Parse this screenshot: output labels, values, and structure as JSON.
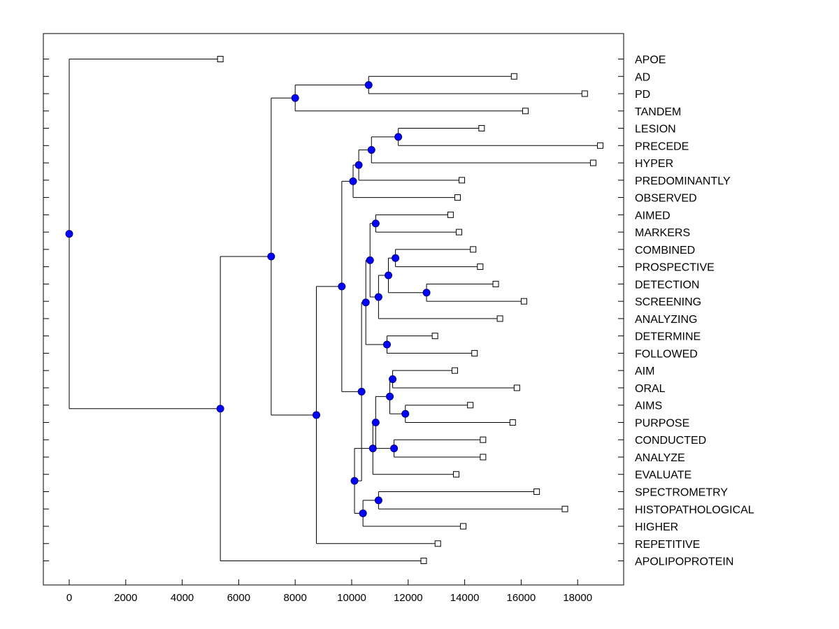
{
  "chart_data": {
    "type": "dendrogram",
    "title": "",
    "xlabel": "",
    "ylabel": "",
    "xlim": [
      -900,
      19500
    ],
    "xticks": [
      "0",
      "2000",
      "4000",
      "6000",
      "8000",
      "10000",
      "12000",
      "14000",
      "16000",
      "18000"
    ],
    "xtick_values": [
      0,
      2000,
      4000,
      6000,
      8000,
      10000,
      12000,
      14000,
      16000,
      18000
    ],
    "leaves": [
      {
        "name": "APOE",
        "x": 5350
      },
      {
        "name": "AD",
        "x": 15750
      },
      {
        "name": "PD",
        "x": 18250
      },
      {
        "name": "TANDEM",
        "x": 16150
      },
      {
        "name": "LESION",
        "x": 14600
      },
      {
        "name": "PRECEDE",
        "x": 18800
      },
      {
        "name": "HYPER",
        "x": 18550
      },
      {
        "name": "PREDOMINANTLY",
        "x": 13900
      },
      {
        "name": "OBSERVED",
        "x": 13750
      },
      {
        "name": "AIMED",
        "x": 13500
      },
      {
        "name": "MARKERS",
        "x": 13800
      },
      {
        "name": "COMBINED",
        "x": 14300
      },
      {
        "name": "PROSPECTIVE",
        "x": 14550
      },
      {
        "name": "DETECTION",
        "x": 15100
      },
      {
        "name": "SCREENING",
        "x": 16100
      },
      {
        "name": "ANALYZING",
        "x": 15250
      },
      {
        "name": "DETERMINE",
        "x": 12950
      },
      {
        "name": "FOLLOWED",
        "x": 14350
      },
      {
        "name": "AIM",
        "x": 13650
      },
      {
        "name": "ORAL",
        "x": 15850
      },
      {
        "name": "AIMS",
        "x": 14200
      },
      {
        "name": "PURPOSE",
        "x": 15700
      },
      {
        "name": "CONDUCTED",
        "x": 14650
      },
      {
        "name": "ANALYZE",
        "x": 14650
      },
      {
        "name": "EVALUATE",
        "x": 13700
      },
      {
        "name": "SPECTROMETRY",
        "x": 16550
      },
      {
        "name": "HISTOPATHOLOGICAL",
        "x": 17550
      },
      {
        "name": "HIGHER",
        "x": 13950
      },
      {
        "name": "REPETITIVE",
        "x": 13050
      },
      {
        "name": "APOLIPOPROTEIN",
        "x": 12550
      }
    ],
    "merges": [
      {
        "id": "m1",
        "x": 10600,
        "children": [
          "AD",
          "PD"
        ]
      },
      {
        "id": "m2",
        "x": 8000,
        "children": [
          "m1",
          "TANDEM"
        ]
      },
      {
        "id": "m3",
        "x": 11650,
        "children": [
          "LESION",
          "PRECEDE"
        ]
      },
      {
        "id": "m4",
        "x": 10700,
        "children": [
          "m3",
          "HYPER"
        ]
      },
      {
        "id": "m5",
        "x": 10250,
        "children": [
          "m4",
          "PREDOMINANTLY"
        ]
      },
      {
        "id": "m6",
        "x": 10050,
        "children": [
          "m5",
          "OBSERVED"
        ]
      },
      {
        "id": "m7",
        "x": 10850,
        "children": [
          "AIMED",
          "MARKERS"
        ]
      },
      {
        "id": "m8",
        "x": 11550,
        "children": [
          "COMBINED",
          "PROSPECTIVE"
        ]
      },
      {
        "id": "m9",
        "x": 12650,
        "children": [
          "DETECTION",
          "SCREENING"
        ]
      },
      {
        "id": "m10",
        "x": 11300,
        "children": [
          "m8",
          "m9"
        ]
      },
      {
        "id": "m11",
        "x": 10950,
        "children": [
          "m10",
          "ANALYZING"
        ]
      },
      {
        "id": "m12",
        "x": 10650,
        "children": [
          "m7",
          "m11"
        ]
      },
      {
        "id": "m13",
        "x": 11250,
        "children": [
          "DETERMINE",
          "FOLLOWED"
        ]
      },
      {
        "id": "m14",
        "x": 10500,
        "children": [
          "m12",
          "m13"
        ]
      },
      {
        "id": "m15",
        "x": 11450,
        "children": [
          "AIM",
          "ORAL"
        ]
      },
      {
        "id": "m16",
        "x": 11900,
        "children": [
          "AIMS",
          "PURPOSE"
        ]
      },
      {
        "id": "m17",
        "x": 11350,
        "children": [
          "m15",
          "m16"
        ]
      },
      {
        "id": "m18",
        "x": 11500,
        "children": [
          "CONDUCTED",
          "ANALYZE"
        ]
      },
      {
        "id": "m19",
        "x": 10850,
        "children": [
          "m17",
          "m18"
        ]
      },
      {
        "id": "m20",
        "x": 10750,
        "children": [
          "m19",
          "EVALUATE"
        ]
      },
      {
        "id": "m21",
        "x": 10950,
        "children": [
          "SPECTROMETRY",
          "HISTOPATHOLOGICAL"
        ]
      },
      {
        "id": "m22",
        "x": 10400,
        "children": [
          "m21",
          "HIGHER"
        ]
      },
      {
        "id": "m23",
        "x": 10100,
        "children": [
          "m20",
          "m22"
        ]
      },
      {
        "id": "m24",
        "x": 10350,
        "children": [
          "m14",
          "m23"
        ]
      },
      {
        "id": "m25",
        "x": 9650,
        "children": [
          "m6",
          "m24"
        ]
      },
      {
        "id": "m26",
        "x": 8750,
        "children": [
          "m25",
          "REPETITIVE"
        ]
      },
      {
        "id": "m27",
        "x": 7150,
        "children": [
          "m2",
          "m26"
        ]
      },
      {
        "id": "m28",
        "x": 5350,
        "children": [
          "m27",
          "APOLIPOPROTEIN"
        ]
      },
      {
        "id": "m29",
        "x": 0,
        "children": [
          "APOE",
          "m28"
        ]
      }
    ],
    "colors": {
      "node": "#0000ff",
      "node_stroke": "#00007a",
      "line": "#000000",
      "leaf_fill": "#ffffff"
    }
  }
}
